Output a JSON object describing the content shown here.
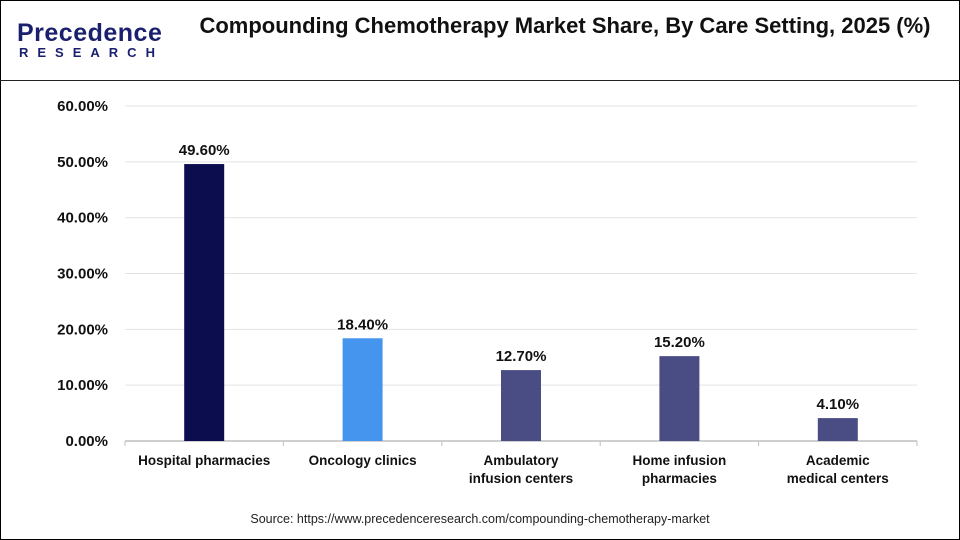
{
  "logo": {
    "text_top": "Precedence",
    "text_bottom": "RESEARCH"
  },
  "title": "Compounding Chemotherapy Market Share, By Care Setting, 2025 (%)",
  "source": "Source: https://www.precedenceresearch.com/compounding-chemotherapy-market",
  "chart_data": {
    "type": "bar",
    "title": "Compounding Chemotherapy Market Share, By Care Setting, 2025 (%)",
    "categories": [
      [
        "Hospital pharmacies"
      ],
      [
        "Oncology clinics"
      ],
      [
        "Ambulatory",
        "infusion centers"
      ],
      [
        "Home infusion",
        "pharmacies"
      ],
      [
        "Academic",
        "medical centers"
      ]
    ],
    "values": [
      49.6,
      18.4,
      12.7,
      15.2,
      4.1
    ],
    "data_labels": [
      "49.60%",
      "18.40%",
      "12.70%",
      "15.20%",
      "4.10%"
    ],
    "colors": [
      "#0b0d4f",
      "#4595ee",
      "#4a4c84",
      "#4a4c84",
      "#4a4c84"
    ],
    "ylim": [
      0,
      60
    ],
    "yticks": [
      "0.00%",
      "10.00%",
      "20.00%",
      "30.00%",
      "40.00%",
      "50.00%",
      "60.00%"
    ],
    "grid": true,
    "xlabel": "",
    "ylabel": ""
  }
}
